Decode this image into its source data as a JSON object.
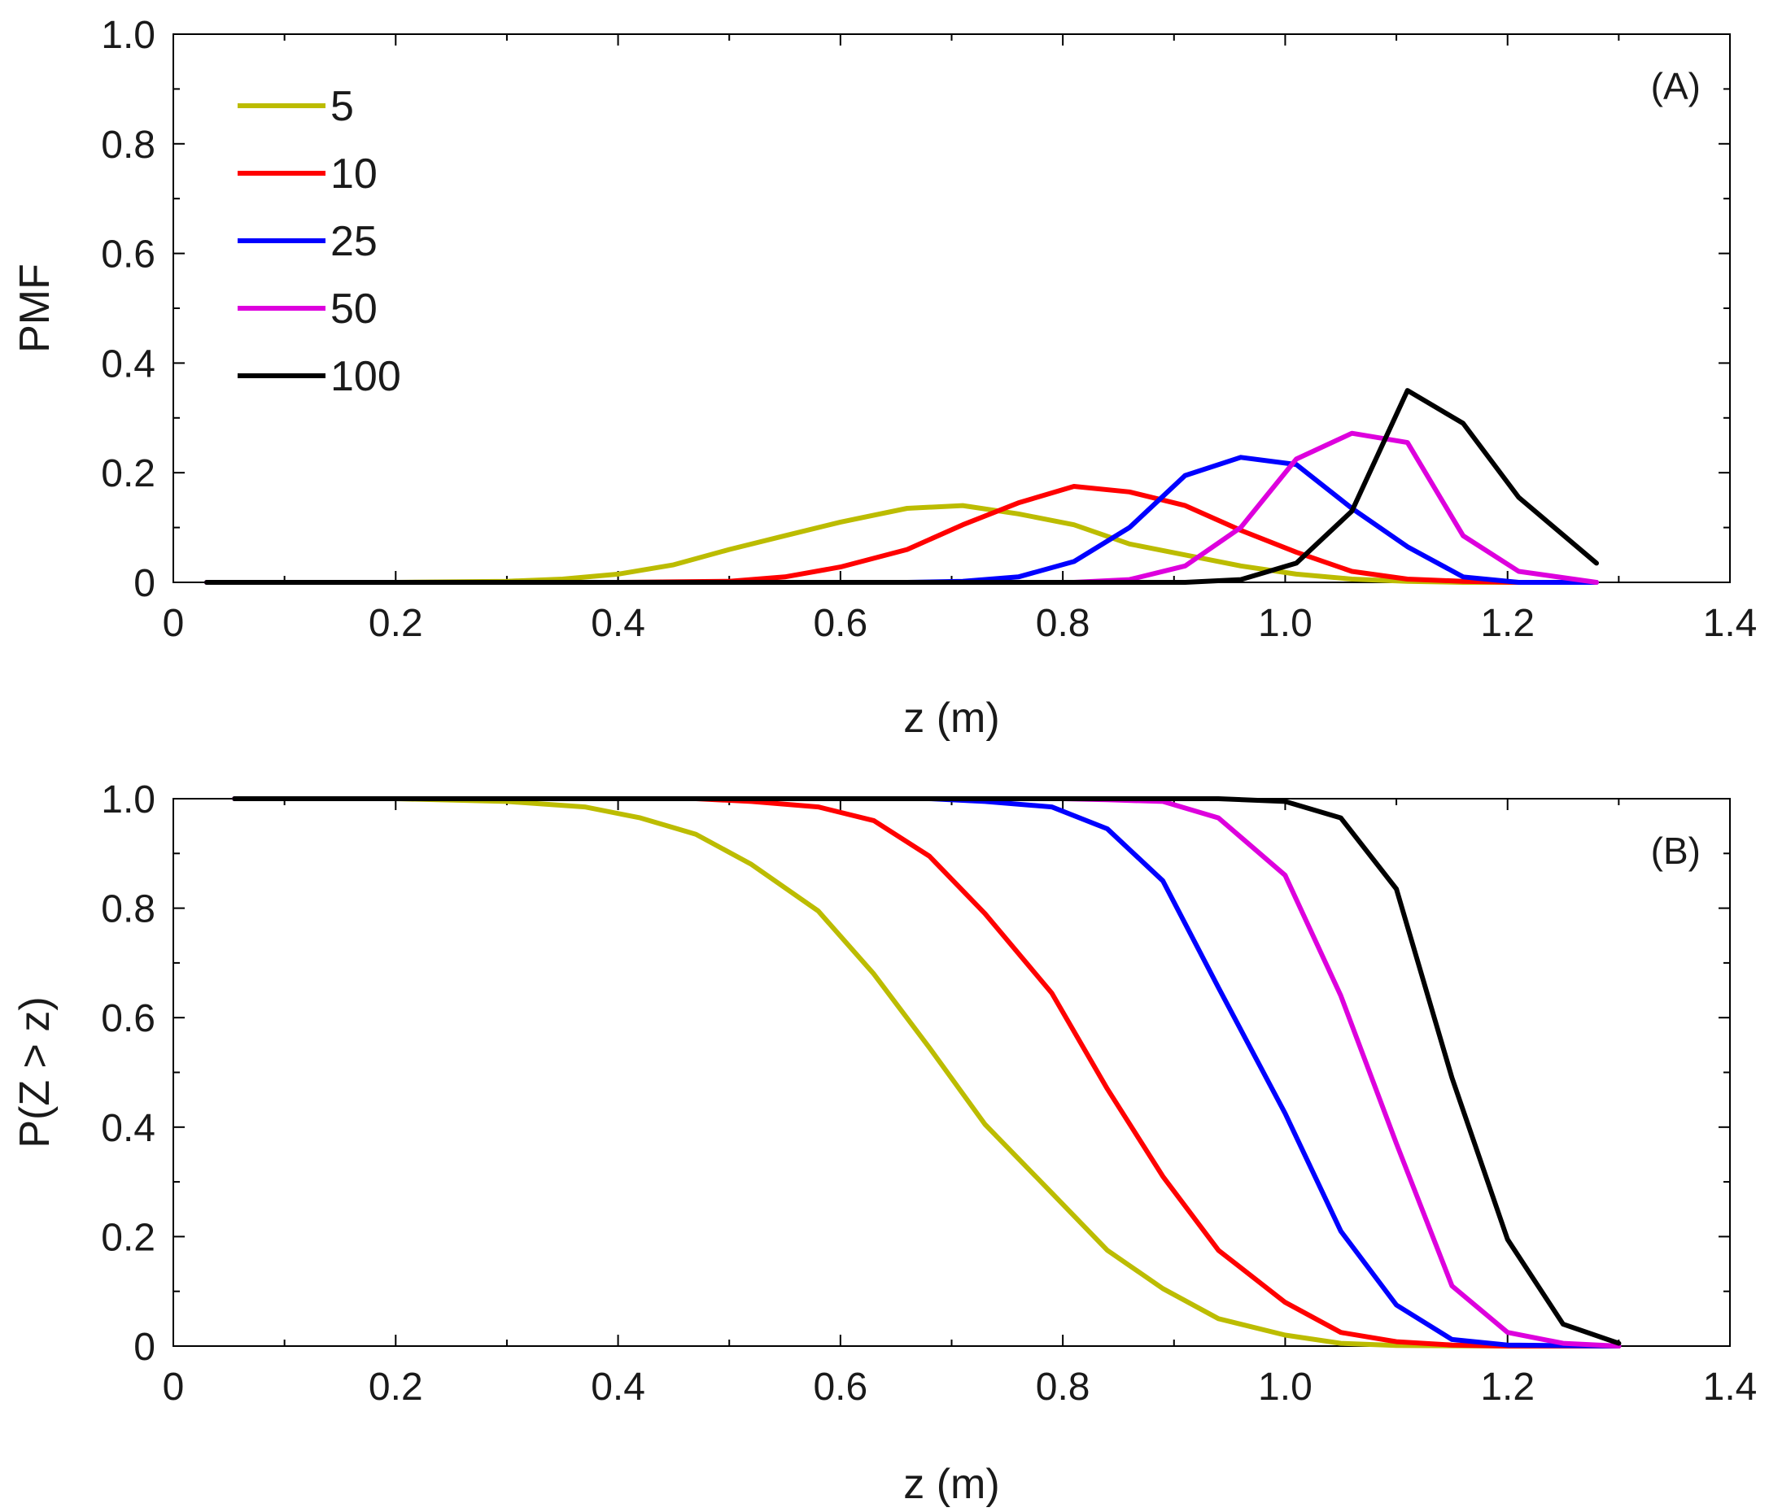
{
  "chart_data": [
    {
      "type": "line",
      "panel_label": "(A)",
      "xlabel": "z (m)",
      "ylabel": "PMF",
      "xlim": [
        0,
        1.4
      ],
      "ylim": [
        0,
        1.0
      ],
      "xticks": [
        "0",
        "0.2",
        "0.4",
        "0.6",
        "0.8",
        "1.0",
        "1.2",
        "1.4"
      ],
      "yticks": [
        "0",
        "0.2",
        "0.4",
        "0.6",
        "0.8",
        "1.0"
      ],
      "legend_position": "top-left",
      "series": [
        {
          "name": "5",
          "color": "#bcbc00",
          "x": [
            0.03,
            0.1,
            0.2,
            0.3,
            0.35,
            0.4,
            0.45,
            0.5,
            0.55,
            0.6,
            0.66,
            0.71,
            0.76,
            0.81,
            0.86,
            0.91,
            0.96,
            1.01,
            1.06,
            1.11,
            1.16,
            1.21,
            1.28
          ],
          "y": [
            0,
            0,
            0,
            0.002,
            0.006,
            0.015,
            0.032,
            0.06,
            0.085,
            0.11,
            0.135,
            0.14,
            0.125,
            0.105,
            0.07,
            0.05,
            0.03,
            0.015,
            0.006,
            0.002,
            0,
            0,
            0
          ]
        },
        {
          "name": "10",
          "color": "#ff0000",
          "x": [
            0.03,
            0.2,
            0.4,
            0.5,
            0.55,
            0.6,
            0.66,
            0.71,
            0.76,
            0.81,
            0.86,
            0.91,
            0.96,
            1.01,
            1.06,
            1.11,
            1.16,
            1.21,
            1.28
          ],
          "y": [
            0,
            0,
            0,
            0.002,
            0.01,
            0.028,
            0.06,
            0.105,
            0.145,
            0.175,
            0.165,
            0.14,
            0.095,
            0.055,
            0.02,
            0.006,
            0.002,
            0,
            0
          ]
        },
        {
          "name": "25",
          "color": "#0000ff",
          "x": [
            0.03,
            0.4,
            0.6,
            0.66,
            0.71,
            0.76,
            0.81,
            0.86,
            0.91,
            0.96,
            1.01,
            1.06,
            1.11,
            1.16,
            1.21,
            1.28
          ],
          "y": [
            0,
            0,
            0,
            0,
            0.002,
            0.01,
            0.038,
            0.1,
            0.195,
            0.228,
            0.215,
            0.135,
            0.065,
            0.01,
            0,
            0
          ]
        },
        {
          "name": "50",
          "color": "#dd00dd",
          "x": [
            0.03,
            0.6,
            0.81,
            0.86,
            0.91,
            0.96,
            1.01,
            1.06,
            1.11,
            1.16,
            1.21,
            1.28
          ],
          "y": [
            0,
            0,
            0,
            0.005,
            0.03,
            0.1,
            0.225,
            0.272,
            0.255,
            0.085,
            0.02,
            0
          ]
        },
        {
          "name": "100",
          "color": "#000000",
          "x": [
            0.03,
            0.6,
            0.81,
            0.91,
            0.96,
            1.01,
            1.06,
            1.11,
            1.16,
            1.21,
            1.28
          ],
          "y": [
            0,
            0,
            0,
            0,
            0.005,
            0.035,
            0.13,
            0.35,
            0.29,
            0.155,
            0.035
          ]
        }
      ]
    },
    {
      "type": "line",
      "panel_label": "(B)",
      "xlabel": "z (m)",
      "ylabel": "P(Z > z)",
      "xlim": [
        0,
        1.4
      ],
      "ylim": [
        0,
        1.0
      ],
      "xticks": [
        "0",
        "0.2",
        "0.4",
        "0.6",
        "0.8",
        "1.0",
        "1.2",
        "1.4"
      ],
      "yticks": [
        "0",
        "0.2",
        "0.4",
        "0.6",
        "0.8",
        "1.0"
      ],
      "series": [
        {
          "name": "5",
          "color": "#bcbc00",
          "x": [
            0.055,
            0.2,
            0.3,
            0.37,
            0.42,
            0.47,
            0.52,
            0.58,
            0.63,
            0.68,
            0.73,
            0.79,
            0.84,
            0.89,
            0.94,
            1.0,
            1.05,
            1.1,
            1.2,
            1.3
          ],
          "y": [
            1.0,
            1.0,
            0.995,
            0.985,
            0.965,
            0.935,
            0.88,
            0.795,
            0.68,
            0.545,
            0.405,
            0.28,
            0.175,
            0.105,
            0.05,
            0.02,
            0.005,
            0.001,
            0,
            0
          ]
        },
        {
          "name": "10",
          "color": "#ff0000",
          "x": [
            0.055,
            0.4,
            0.47,
            0.52,
            0.58,
            0.63,
            0.68,
            0.73,
            0.79,
            0.84,
            0.89,
            0.94,
            1.0,
            1.05,
            1.1,
            1.15,
            1.2,
            1.3
          ],
          "y": [
            1.0,
            1.0,
            1.0,
            0.995,
            0.985,
            0.96,
            0.895,
            0.79,
            0.645,
            0.47,
            0.31,
            0.175,
            0.08,
            0.025,
            0.008,
            0.002,
            0,
            0
          ]
        },
        {
          "name": "25",
          "color": "#0000ff",
          "x": [
            0.055,
            0.6,
            0.68,
            0.73,
            0.79,
            0.84,
            0.89,
            0.94,
            1.0,
            1.05,
            1.1,
            1.15,
            1.2,
            1.3
          ],
          "y": [
            1.0,
            1.0,
            1.0,
            0.995,
            0.985,
            0.945,
            0.85,
            0.655,
            0.425,
            0.21,
            0.075,
            0.012,
            0.002,
            0
          ]
        },
        {
          "name": "50",
          "color": "#dd00dd",
          "x": [
            0.055,
            0.8,
            0.84,
            0.89,
            0.94,
            1.0,
            1.05,
            1.1,
            1.15,
            1.2,
            1.25,
            1.3
          ],
          "y": [
            1.0,
            1.0,
            0.998,
            0.995,
            0.965,
            0.86,
            0.64,
            0.37,
            0.11,
            0.025,
            0.005,
            0
          ]
        },
        {
          "name": "100",
          "color": "#000000",
          "x": [
            0.055,
            0.8,
            0.94,
            1.0,
            1.05,
            1.1,
            1.15,
            1.2,
            1.25,
            1.3
          ],
          "y": [
            1.0,
            1.0,
            1.0,
            0.995,
            0.965,
            0.835,
            0.49,
            0.195,
            0.04,
            0.005
          ]
        }
      ]
    }
  ]
}
